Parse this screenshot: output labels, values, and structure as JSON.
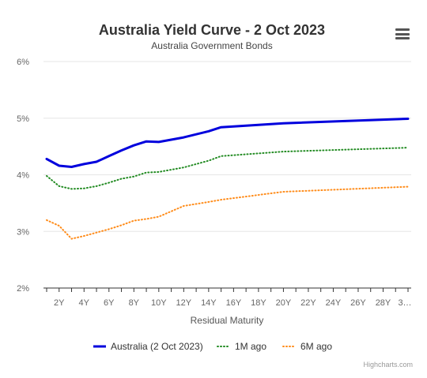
{
  "chart_data": {
    "type": "line",
    "title": "Australia Yield Curve - 2 Oct 2023",
    "subtitle": "Australia Government Bonds",
    "xlabel": "Residual Maturity",
    "ylabel": "",
    "x_tick_labels": [
      "2Y",
      "4Y",
      "6Y",
      "8Y",
      "10Y",
      "12Y",
      "14Y",
      "16Y",
      "18Y",
      "20Y",
      "22Y",
      "24Y",
      "26Y",
      "28Y",
      "3…"
    ],
    "y_tick_labels": [
      "2%",
      "3%",
      "4%",
      "5%",
      "6%"
    ],
    "ylim": [
      2,
      6
    ],
    "xlim": [
      1,
      30
    ],
    "grid": true,
    "legend_position": "bottom-center",
    "credit": "Highcharts.com",
    "series": [
      {
        "name": "Australia (2 Oct 2023)",
        "color": "#0000dd",
        "style": "solid",
        "x": [
          1,
          2,
          3,
          4,
          5,
          6,
          7,
          8,
          9,
          10,
          12,
          14,
          15,
          20,
          30
        ],
        "y": [
          4.28,
          4.16,
          4.14,
          4.19,
          4.23,
          4.33,
          4.43,
          4.52,
          4.59,
          4.58,
          4.66,
          4.77,
          4.84,
          4.91,
          4.99
        ]
      },
      {
        "name": "1M ago",
        "color": "#228b22",
        "style": "dotted",
        "x": [
          1,
          2,
          3,
          4,
          5,
          6,
          7,
          8,
          9,
          10,
          12,
          14,
          15,
          20,
          30
        ],
        "y": [
          3.98,
          3.8,
          3.75,
          3.76,
          3.8,
          3.86,
          3.93,
          3.97,
          4.04,
          4.05,
          4.13,
          4.25,
          4.33,
          4.41,
          4.48
        ]
      },
      {
        "name": "6M ago",
        "color": "#ff8c1a",
        "style": "dotted",
        "x": [
          1,
          2,
          3,
          4,
          5,
          6,
          7,
          8,
          9,
          10,
          12,
          14,
          15,
          20,
          30
        ],
        "y": [
          3.2,
          3.1,
          2.87,
          2.92,
          2.98,
          3.04,
          3.11,
          3.19,
          3.22,
          3.26,
          3.45,
          3.52,
          3.56,
          3.7,
          3.79
        ]
      }
    ]
  }
}
